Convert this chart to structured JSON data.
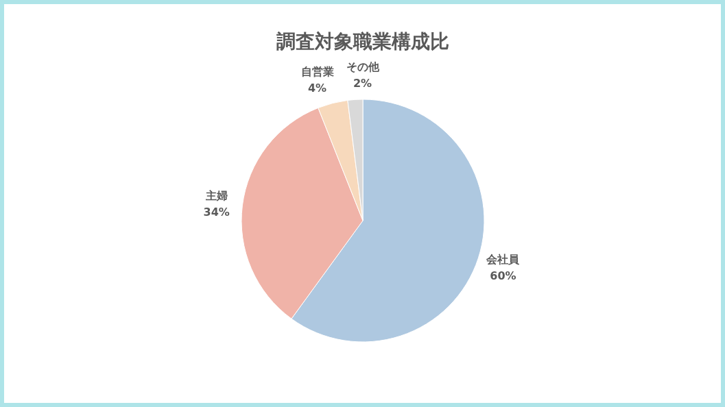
{
  "chart_data": {
    "type": "pie",
    "title": "調査対象職業構成比",
    "categories": [
      "会社員",
      "主婦",
      "自営業",
      "その他"
    ],
    "values": [
      60,
      34,
      4,
      2
    ],
    "colors": [
      "#aec8e0",
      "#f0b3a8",
      "#f7d9bc",
      "#d9d9d9"
    ],
    "value_labels": [
      "60%",
      "34%",
      "4%",
      "2%"
    ]
  }
}
